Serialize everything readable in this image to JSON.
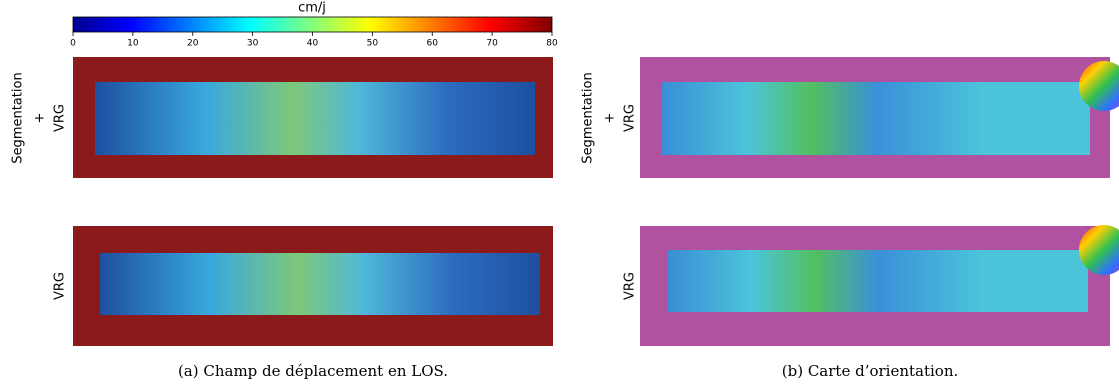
{
  "colorbar": {
    "label": "cm/j",
    "lim": [
      0,
      80
    ],
    "ticks": [
      0,
      10,
      20,
      30,
      40,
      50,
      60,
      70,
      80
    ]
  },
  "panels": [
    {
      "caption": "(a) Champ de déplacement en LOS.",
      "rows": [
        [
          "Segmentation",
          "+",
          "VRG"
        ],
        [
          "VRG"
        ]
      ]
    },
    {
      "caption": "(b) Carte d’orientation.",
      "rows": [
        [
          "Segmentation",
          "+",
          "VRG"
        ],
        [
          "VRG"
        ]
      ]
    }
  ]
}
